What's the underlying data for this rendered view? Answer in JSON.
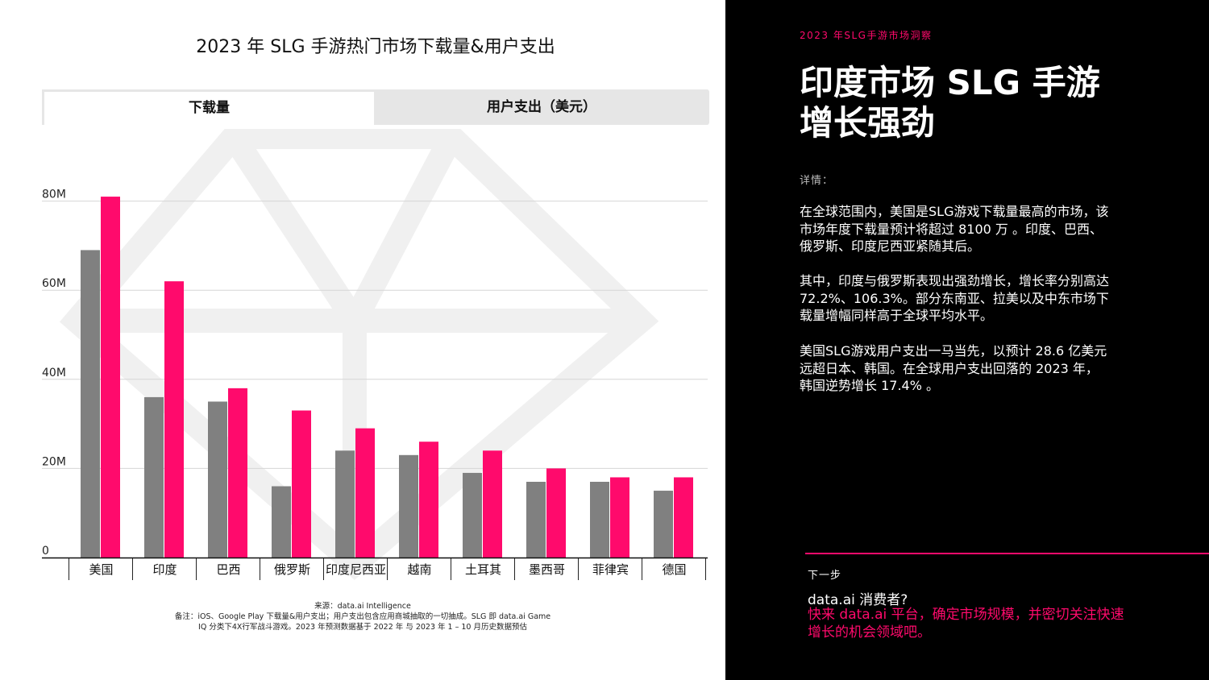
{
  "chart_data": {
    "type": "bar",
    "title": "2023 年 SLG 手游热门市场下载量&用户支出",
    "categories": [
      "美国",
      "印度",
      "巴西",
      "俄罗斯",
      "印度尼西亚",
      "越南",
      "土耳其",
      "墨西哥",
      "菲律宾",
      "德国"
    ],
    "series": [
      {
        "name": "",
        "color": "#808080",
        "values": [
          69,
          36,
          35,
          16,
          24,
          23,
          19,
          17,
          17,
          15
        ]
      },
      {
        "name": "",
        "color": "#ff0a6c",
        "values": [
          81,
          62,
          38,
          33,
          29,
          26,
          24,
          20,
          18,
          18
        ]
      }
    ],
    "yticks": [
      "0",
      "20M",
      "40M",
      "60M",
      "80M"
    ],
    "ytick_values": [
      0,
      20,
      40,
      60,
      80
    ],
    "ylim": [
      0,
      80
    ],
    "grid": true
  },
  "tabs": [
    "下载量",
    "用户支出（美元）"
  ],
  "source": {
    "line1": "来源：data.ai Intelligence",
    "line2": "备注：iOS、Google Play 下载量&用户支出；用户支出包含应用商城抽取的一切抽成。SLG 即 data.ai Game",
    "line3": "IQ 分类下4X行军战斗游戏。2023 年预测数据基于 2022 年 与 2023 年 1 – 10 月历史数据预估"
  },
  "panel": {
    "kicker": "2023 年SLG手游市场洞察",
    "headline_1": "印度市场 SLG 手游",
    "headline_2": "增长强劲",
    "detail_label": "详情：",
    "paragraphs": [
      [
        "在全球范围内，美国是SLG游戏下载量最高的市场，该",
        "市场年度下载量预计将超过 8100 万 。印度、巴西、",
        "俄罗斯、印度尼西亚紧随其后。"
      ],
      [
        "其中，印度与俄罗斯表现出强劲增长，增长率分别高达",
        "72.2%、106.3%。部分东南亚、拉美以及中东市场下",
        "载量增幅同样高于全球平均水平。"
      ],
      [
        "美国SLG游戏用户支出一马当先，以预计 28.6 亿美元",
        "远超日本、韩国。在全球用户支出回落的 2023 年，",
        "韩国逆势增长 17.4% 。"
      ]
    ],
    "next_label": "下一步",
    "cta_question": "data.ai 消费者?",
    "cta_link_1": "快来 data.ai 平台，确定市场规模，并密切关注快速",
    "cta_link_2": "增长的机会领域吧。"
  }
}
